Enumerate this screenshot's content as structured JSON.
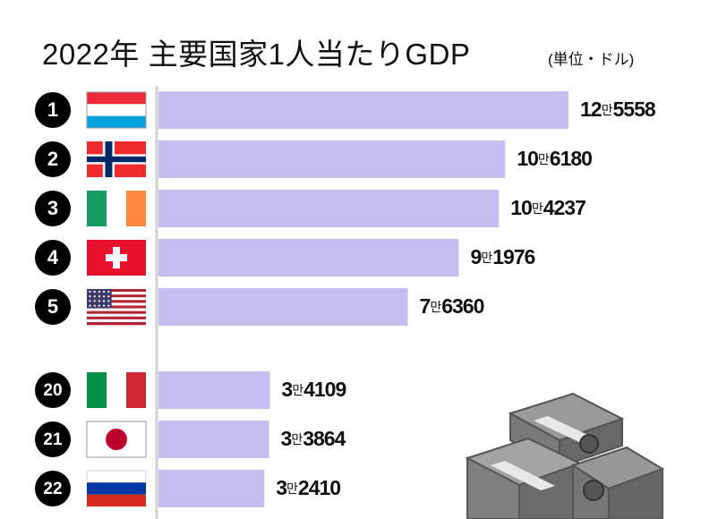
{
  "title": "2022年 主要国家1人当たりGDP",
  "unit": "(単位・ドル)",
  "chart_data": {
    "type": "bar",
    "orientation": "horizontal",
    "categories": [
      "Luxembourg",
      "Norway",
      "Ireland",
      "Switzerland",
      "United States",
      "Italy",
      "Japan",
      "Russia"
    ],
    "ranks": [
      "1",
      "2",
      "3",
      "4",
      "5",
      "20",
      "21",
      "22"
    ],
    "values": [
      125558,
      106180,
      104237,
      91976,
      76360,
      34109,
      33864,
      32410
    ],
    "value_labels": [
      {
        "man": "12",
        "unit": "만",
        "rest": "5558"
      },
      {
        "man": "10",
        "unit": "만",
        "rest": "6180"
      },
      {
        "man": "10",
        "unit": "만",
        "rest": "4237"
      },
      {
        "man": "9",
        "unit": "만",
        "rest": "1976"
      },
      {
        "man": "7",
        "unit": "만",
        "rest": "6360"
      },
      {
        "man": "3",
        "unit": "만",
        "rest": "4109"
      },
      {
        "man": "3",
        "unit": "만",
        "rest": "3864"
      },
      {
        "man": "3",
        "unit": "만",
        "rest": "2410"
      }
    ],
    "bar_color": "#c8bdf0",
    "grid": false,
    "legend": "none"
  }
}
